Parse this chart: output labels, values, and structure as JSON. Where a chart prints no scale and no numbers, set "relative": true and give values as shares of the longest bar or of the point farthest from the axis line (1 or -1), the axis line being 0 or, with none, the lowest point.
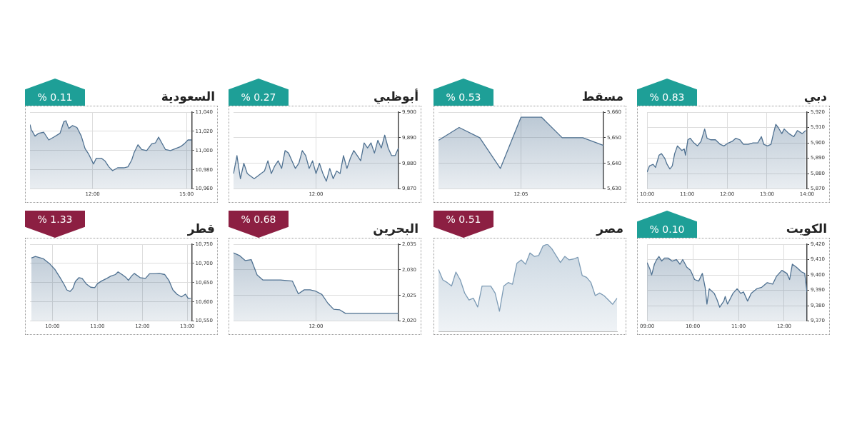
{
  "chart_data": [
    {
      "type": "area",
      "title": "السعودية",
      "annotations": [
        "% 0.11"
      ],
      "grid": true,
      "x": [
        10.0,
        10.04,
        10.16,
        10.28,
        10.44,
        10.6,
        10.76,
        10.96,
        11.08,
        11.15,
        11.24,
        11.36,
        11.5,
        11.64,
        11.76,
        11.88,
        12.03,
        12.12,
        12.28,
        12.4,
        12.52,
        12.64,
        12.8,
        13.0,
        13.13,
        13.25,
        13.33,
        13.45,
        13.57,
        13.73,
        13.89,
        14.01,
        14.11,
        14.21,
        14.33,
        14.49,
        14.65,
        14.81,
        14.93,
        15.05,
        15.17
      ],
      "xlim": [
        10,
        15.17
      ],
      "xticks": [
        {
          "value": 12,
          "label": "12:00"
        },
        {
          "value": 15,
          "label": "15:00"
        }
      ],
      "ylim": [
        10960,
        11040
      ],
      "yticks": [
        {
          "value": 10960,
          "label": "10,960"
        },
        {
          "value": 10980,
          "label": "10,980"
        },
        {
          "value": 11000,
          "label": "11,000"
        },
        {
          "value": 11020,
          "label": "11,020"
        },
        {
          "value": 11040,
          "label": "11,040"
        }
      ],
      "series": [
        {
          "color": "#4f7191",
          "values": [
            11027,
            11022,
            11015,
            11018,
            11019,
            11011,
            11014,
            11018,
            11030,
            11031,
            11023,
            11026,
            11024,
            11015,
            11002,
            10996,
            10986,
            10992,
            10992,
            10989,
            10983,
            10979,
            10982,
            10982,
            10983,
            10990,
            10998,
            11006,
            11001,
            11000,
            11007,
            11008,
            11014,
            11008,
            11001,
            11000,
            11002,
            11004,
            11007,
            11011,
            11011
          ]
        }
      ]
    },
    {
      "type": "area",
      "title": "أبوظبي",
      "annotations": [
        "% 0.27"
      ],
      "grid": true,
      "categories": [
        null,
        null,
        null,
        null,
        null,
        null,
        null,
        null,
        null,
        null,
        null,
        null,
        null,
        null,
        null,
        null,
        null,
        null,
        null,
        null,
        null,
        null,
        null,
        null,
        "12:00",
        null,
        null,
        null,
        null,
        null,
        null,
        null,
        null,
        null,
        null,
        null,
        null,
        null,
        null,
        null,
        null,
        null,
        null,
        null,
        null,
        null,
        null,
        null,
        null
      ],
      "ylim": [
        9870,
        9900
      ],
      "yticks": [
        {
          "value": 9870,
          "label": "9,870"
        },
        {
          "value": 9880,
          "label": "9,880"
        },
        {
          "value": 9890,
          "label": "9,890"
        },
        {
          "value": 9900,
          "label": "9,900"
        }
      ],
      "series": [
        {
          "color": "#4f7191",
          "values": [
            9876,
            9883,
            9874,
            9880,
            9876,
            9875,
            9874,
            9875,
            9876,
            9877,
            9881,
            9876,
            9879,
            9881,
            9878,
            9885,
            9884,
            9881,
            9878,
            9880,
            9885,
            9883,
            9878,
            9881,
            9876,
            9880,
            9876,
            9873,
            9878,
            9874,
            9877,
            9876,
            9883,
            9878,
            9882,
            9885,
            9883,
            9881,
            9888,
            9886,
            9888,
            9884,
            9889,
            9886,
            9891,
            9886,
            9883,
            9883,
            9886
          ]
        }
      ]
    },
    {
      "type": "area",
      "title": "مسقط",
      "annotations": [
        "% 0.53"
      ],
      "grid": true,
      "categories": [
        null,
        null,
        null,
        null,
        "12:05",
        null,
        null,
        null,
        null
      ],
      "ylim": [
        5630,
        5660
      ],
      "yticks": [
        {
          "value": 5630,
          "label": "5,630"
        },
        {
          "value": 5640,
          "label": "5,640"
        },
        {
          "value": 5650,
          "label": "5,650"
        },
        {
          "value": 5660,
          "label": "5,660"
        }
      ],
      "series": [
        {
          "color": "#4f7191",
          "values": [
            5649,
            5654,
            5650,
            5638,
            5658,
            5658,
            5650,
            5650,
            5647
          ]
        }
      ]
    },
    {
      "type": "area",
      "title": "دبي",
      "annotations": [
        "% 0.83"
      ],
      "grid": true,
      "x": [
        10.0,
        10.06,
        10.15,
        10.21,
        10.3,
        10.36,
        10.44,
        10.5,
        10.57,
        10.63,
        10.69,
        10.76,
        10.87,
        10.93,
        10.96,
        11.02,
        11.08,
        11.17,
        11.26,
        11.35,
        11.44,
        11.5,
        11.59,
        11.71,
        11.83,
        11.92,
        12.04,
        12.13,
        12.22,
        12.32,
        12.41,
        12.53,
        12.65,
        12.77,
        12.86,
        12.92,
        13.01,
        13.1,
        13.16,
        13.22,
        13.28,
        13.37,
        13.43,
        13.55,
        13.67,
        13.76,
        13.88,
        13.97
      ],
      "xlim": [
        10,
        14
      ],
      "xticks": [
        {
          "value": 10,
          "label": "10:00"
        },
        {
          "value": 11,
          "label": "11:00"
        },
        {
          "value": 12,
          "label": "12:00"
        },
        {
          "value": 13,
          "label": "13:00"
        },
        {
          "value": 14,
          "label": "14:00"
        }
      ],
      "ylim": [
        5870,
        5920
      ],
      "yticks": [
        {
          "value": 5870,
          "label": "5,870"
        },
        {
          "value": 5880,
          "label": "5,880"
        },
        {
          "value": 5890,
          "label": "5,890"
        },
        {
          "value": 5900,
          "label": "5,900"
        },
        {
          "value": 5910,
          "label": "5,910"
        },
        {
          "value": 5920,
          "label": "5,920"
        }
      ],
      "series": [
        {
          "color": "#4f7191",
          "values": [
            5881,
            5885,
            5886,
            5884,
            5892,
            5893,
            5890,
            5886,
            5883,
            5885,
            5893,
            5898,
            5895,
            5896,
            5892,
            5902,
            5903,
            5900,
            5898,
            5901,
            5909,
            5903,
            5902,
            5902,
            5899,
            5898,
            5900,
            5901,
            5903,
            5902,
            5899,
            5899,
            5900,
            5900,
            5904,
            5899,
            5898,
            5899,
            5906,
            5912,
            5910,
            5906,
            5909,
            5906,
            5904,
            5908,
            5906,
            5908
          ]
        }
      ]
    },
    {
      "type": "area",
      "title": "قطر",
      "annotations": [
        "% 1.33"
      ],
      "grid": true,
      "x": [
        9.53,
        9.62,
        9.8,
        9.93,
        10.05,
        10.17,
        10.26,
        10.32,
        10.39,
        10.45,
        10.51,
        10.59,
        10.66,
        10.75,
        10.85,
        10.94,
        11.0,
        11.09,
        11.21,
        11.3,
        11.4,
        11.46,
        11.55,
        11.64,
        11.69,
        11.76,
        11.82,
        11.95,
        12.07,
        12.16,
        12.25,
        12.38,
        12.5,
        12.59,
        12.68,
        12.77,
        12.87,
        12.96,
        13.02,
        13.08
      ],
      "xlim": [
        9.5,
        13.1
      ],
      "xticks": [
        {
          "value": 10,
          "label": "10:00"
        },
        {
          "value": 11,
          "label": "11:00"
        },
        {
          "value": 12,
          "label": "12:00"
        },
        {
          "value": 13,
          "label": "13:00"
        }
      ],
      "ylim": [
        10550,
        10750
      ],
      "yticks": [
        {
          "value": 10550,
          "label": "10,550"
        },
        {
          "value": 10600,
          "label": "10,600"
        },
        {
          "value": 10650,
          "label": "10,650"
        },
        {
          "value": 10700,
          "label": "10,700"
        },
        {
          "value": 10750,
          "label": "10,750"
        }
      ],
      "series": [
        {
          "color": "#4f7191",
          "values": [
            10714,
            10718,
            10712,
            10700,
            10685,
            10663,
            10645,
            10631,
            10627,
            10634,
            10653,
            10663,
            10661,
            10647,
            10638,
            10637,
            10647,
            10654,
            10661,
            10667,
            10671,
            10678,
            10671,
            10663,
            10656,
            10667,
            10674,
            10663,
            10661,
            10673,
            10673,
            10674,
            10671,
            10656,
            10631,
            10620,
            10613,
            10620,
            10609,
            10609
          ]
        }
      ]
    },
    {
      "type": "area",
      "title": "البحرين",
      "annotations": [
        "% 0.68"
      ],
      "grid": true,
      "categories": [
        null,
        null,
        null,
        null,
        null,
        null,
        null,
        null,
        null,
        null,
        null,
        null,
        null,
        null,
        "12:00",
        null,
        null,
        null,
        null,
        null,
        null,
        null,
        null,
        null,
        null,
        null,
        null,
        null,
        null
      ],
      "ylim": [
        2020,
        2035
      ],
      "yticks": [
        {
          "value": 2020,
          "label": "2,020"
        },
        {
          "value": 2025,
          "label": "2,025"
        },
        {
          "value": 2030,
          "label": "2,030"
        },
        {
          "value": 2035,
          "label": "2,035"
        }
      ],
      "series": [
        {
          "color": "#4f7191",
          "values": [
            2033.3,
            2032.8,
            2031.8,
            2032.0,
            2029.0,
            2028.0,
            2028.0,
            2028.0,
            2028.0,
            2027.9,
            2027.8,
            2025.3,
            2026.1,
            2026.1,
            2025.8,
            2025.2,
            2023.5,
            2022.3,
            2022.2,
            2021.5,
            2021.5,
            2021.5,
            2021.5,
            2021.5,
            2021.5,
            2021.5,
            2021.5,
            2021.5,
            2021.5
          ]
        }
      ]
    },
    {
      "type": "area",
      "title": "مصر",
      "annotations": [
        "% 0.51"
      ],
      "relative": true,
      "tick_labels": false,
      "categories": [
        null,
        null,
        null,
        null,
        null,
        null,
        null,
        null,
        null,
        null,
        null,
        null,
        null,
        null,
        null,
        null,
        null,
        null,
        null,
        null,
        null,
        null,
        null,
        null,
        null,
        null,
        null,
        null,
        null,
        null,
        null,
        null,
        null,
        null,
        null,
        null,
        null,
        null,
        null,
        null,
        null,
        null
      ],
      "series": [
        {
          "color": "#7d9bb5",
          "values": [
            0.71,
            0.59,
            0.56,
            0.52,
            0.68,
            0.59,
            0.44,
            0.36,
            0.38,
            0.28,
            0.52,
            0.52,
            0.52,
            0.44,
            0.23,
            0.52,
            0.56,
            0.54,
            0.78,
            0.82,
            0.77,
            0.9,
            0.86,
            0.87,
            0.98,
            1,
            0.95,
            0.87,
            0.79,
            0.86,
            0.82,
            0.83,
            0.85,
            0.64,
            0.62,
            0.56,
            0.41,
            0.44,
            0.41,
            0.36,
            0.31,
            0.38
          ]
        }
      ]
    },
    {
      "type": "area",
      "title": "الكويت",
      "annotations": [
        "% 0.10"
      ],
      "grid": true,
      "x": [
        9.0,
        9.06,
        9.1,
        9.16,
        9.21,
        9.26,
        9.32,
        9.38,
        9.46,
        9.55,
        9.64,
        9.72,
        9.78,
        9.87,
        9.95,
        10.04,
        10.13,
        10.21,
        10.27,
        10.31,
        10.36,
        10.47,
        10.53,
        10.59,
        10.68,
        10.71,
        10.76,
        10.88,
        10.97,
        11.05,
        11.11,
        11.2,
        11.28,
        11.4,
        11.51,
        11.63,
        11.75,
        11.83,
        11.95,
        12.06,
        12.12,
        12.18,
        12.27,
        12.38,
        12.45,
        12.5
      ],
      "xlim": [
        9,
        12.5
      ],
      "xticks": [
        {
          "value": 9,
          "label": "09:00"
        },
        {
          "value": 10,
          "label": "10:00"
        },
        {
          "value": 11,
          "label": "11:00"
        },
        {
          "value": 12,
          "label": "12:00"
        }
      ],
      "ylim": [
        9370,
        9420
      ],
      "yticks": [
        {
          "value": 9370,
          "label": "9,370"
        },
        {
          "value": 9380,
          "label": "9,380"
        },
        {
          "value": 9390,
          "label": "9,390"
        },
        {
          "value": 9400,
          "label": "9,400"
        },
        {
          "value": 9410,
          "label": "9,410"
        },
        {
          "value": 9420,
          "label": "9,420"
        }
      ],
      "series": [
        {
          "color": "#4f7191",
          "values": [
            9408,
            9404,
            9400,
            9407,
            9410,
            9412,
            9409,
            9411,
            9411,
            9409,
            9410,
            9407,
            9410,
            9405,
            9403,
            9397,
            9396,
            9401,
            9392,
            9381,
            9391,
            9388,
            9384,
            9379,
            9383,
            9386,
            9381,
            9388,
            9391,
            9388,
            9389,
            9383,
            9388,
            9391,
            9392,
            9395,
            9394,
            9399,
            9403,
            9401,
            9397,
            9407,
            9405,
            9402,
            9401,
            9389
          ]
        }
      ]
    }
  ]
}
